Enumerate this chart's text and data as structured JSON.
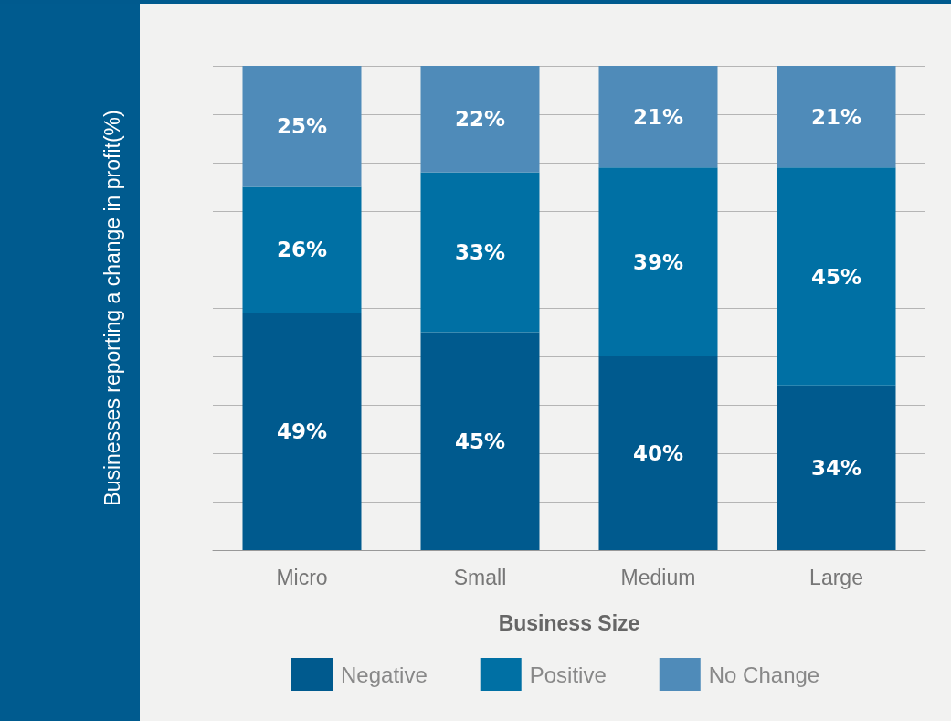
{
  "chart_data": {
    "type": "bar",
    "stacked": true,
    "xlabel": "Business Size",
    "ylabel": "Businesses reporting a change in profit(%)",
    "categories": [
      "Micro",
      "Small",
      "Medium",
      "Large"
    ],
    "series": [
      {
        "name": "Negative",
        "color": "#005a8e",
        "values": [
          49,
          45,
          40,
          34
        ],
        "value_labels": [
          "49%",
          "45%",
          "40%",
          "34%"
        ]
      },
      {
        "name": "Positive",
        "color": "#0070a4",
        "values": [
          26,
          33,
          39,
          45
        ],
        "value_labels": [
          "26%",
          "33%",
          "39%",
          "45%"
        ]
      },
      {
        "name": "No Change",
        "color": "#4f8bb9",
        "values": [
          25,
          22,
          21,
          21
        ],
        "value_labels": [
          "25%",
          "22%",
          "21%",
          "21%"
        ]
      }
    ],
    "ylim": [
      0,
      100
    ],
    "yticks": [
      {
        "value": 0,
        "label": null
      },
      {
        "value": 10,
        "label": null
      },
      {
        "value": 20,
        "label": null
      },
      {
        "value": 30,
        "label": null
      },
      {
        "value": 40,
        "label": null
      },
      {
        "value": 50,
        "label": null
      },
      {
        "value": 60,
        "label": null
      },
      {
        "value": 70,
        "label": null
      },
      {
        "value": 80,
        "label": null
      },
      {
        "value": 90,
        "label": null
      },
      {
        "value": 100,
        "label": null
      }
    ],
    "tick_labels": "x",
    "grid": "y",
    "legend": "bottom"
  }
}
